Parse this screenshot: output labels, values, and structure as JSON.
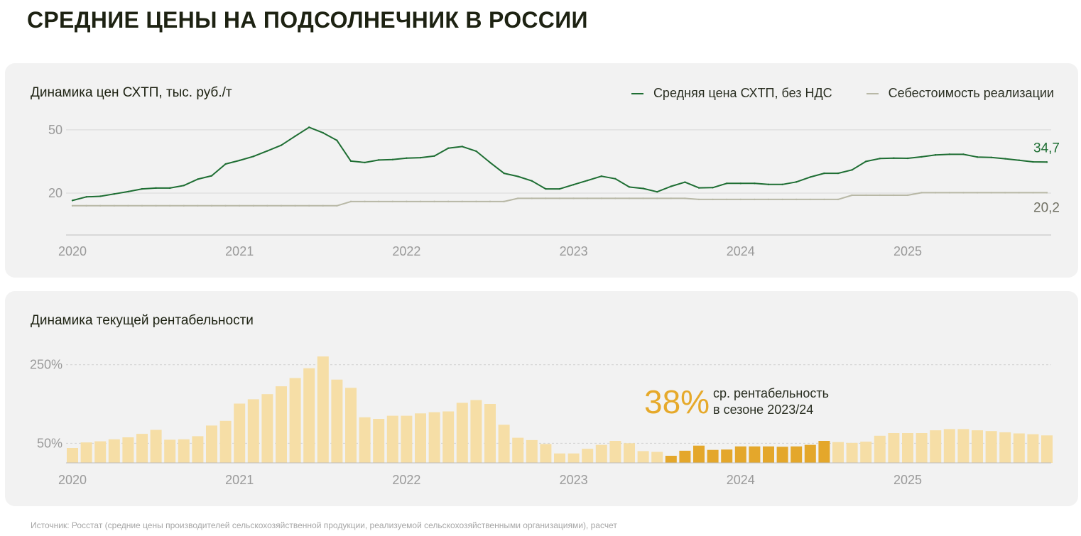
{
  "page": {
    "title": "СРЕДНИЕ ЦЕНЫ НА ПОДСОЛНЕЧНИК В РОССИИ",
    "source": "Источник: Росстат (средние цены производителей сельскохозяйственной продукции, реализуемой сельскохозяйственными организациями), расчет"
  },
  "colors": {
    "price": "#1e6e33",
    "cost": "#b8b8a6",
    "bar_light": "#f6dea6",
    "bar_dark": "#e4a72b",
    "callout": "#e6a92a"
  },
  "chart_data": [
    {
      "type": "line",
      "title": "Динамика цен СХТП",
      "title_unit": ", тыс. руб./т",
      "x_start": "2020-01",
      "x_ticks": [
        "2020",
        "2021",
        "2022",
        "2023",
        "2024",
        "2025"
      ],
      "y_ticks": [
        50,
        20
      ],
      "ylim": [
        0,
        55
      ],
      "grid": "horizontal",
      "legend_position": "top-right",
      "series": [
        {
          "name": "Средняя цена СХТП, без НДС",
          "end_label": "34,7",
          "values": [
            16.5,
            18.2,
            18.5,
            19.6,
            20.7,
            22.0,
            22.4,
            22.4,
            23.6,
            26.6,
            28.2,
            33.8,
            35.5,
            37.4,
            40.0,
            42.7,
            47.0,
            51.2,
            48.6,
            45.0,
            35.2,
            34.5,
            35.7,
            35.9,
            36.6,
            36.8,
            37.6,
            41.3,
            42.1,
            39.9,
            34.5,
            29.4,
            27.9,
            25.8,
            22.0,
            22.0,
            24.0,
            26.0,
            28.0,
            26.8,
            22.9,
            22.2,
            20.6,
            23.2,
            25.2,
            22.5,
            22.6,
            24.6,
            24.6,
            24.6,
            24.1,
            24.1,
            25.3,
            27.6,
            29.4,
            29.4,
            31.0,
            35.0,
            36.4,
            36.6,
            36.5,
            37.2,
            38.1,
            38.4,
            38.4,
            37.1,
            36.9,
            36.3,
            35.6,
            34.8,
            34.7
          ]
        },
        {
          "name": "Себестоимость реализации",
          "end_label": "20,2",
          "values": [
            14.0,
            14.0,
            14.0,
            14.0,
            14.0,
            14.0,
            14.0,
            14.0,
            14.0,
            14.0,
            14.0,
            14.0,
            14.0,
            14.0,
            14.0,
            14.0,
            14.0,
            14.0,
            14.0,
            14.0,
            16.0,
            16.0,
            16.0,
            16.0,
            16.0,
            16.0,
            16.0,
            16.0,
            16.0,
            16.0,
            16.0,
            16.0,
            17.5,
            17.5,
            17.5,
            17.5,
            17.5,
            17.5,
            17.5,
            17.5,
            17.5,
            17.5,
            17.5,
            17.5,
            17.5,
            17.0,
            17.0,
            17.0,
            17.0,
            17.0,
            17.0,
            17.0,
            17.0,
            17.0,
            17.0,
            17.0,
            19.0,
            19.0,
            19.0,
            19.0,
            19.0,
            20.2,
            20.2,
            20.2,
            20.2,
            20.2,
            20.2,
            20.2,
            20.2,
            20.2,
            20.2
          ]
        }
      ]
    },
    {
      "type": "bar",
      "title": "Динамика текущей рентабельности",
      "x_start": "2020-01",
      "x_ticks": [
        "2020",
        "2021",
        "2022",
        "2023",
        "2024",
        "2025"
      ],
      "y_ticks": [
        "250%",
        "50%"
      ],
      "y_tick_values": [
        250,
        50
      ],
      "ylim": [
        0,
        275
      ],
      "grid": "horizontal",
      "highlight_range": [
        "2023-08",
        "2024-07"
      ],
      "values": [
        38,
        52,
        55,
        60,
        65,
        74,
        84,
        59,
        60,
        68,
        95,
        107,
        151,
        162,
        175,
        195,
        216,
        241,
        271,
        212,
        191,
        116,
        112,
        120,
        120,
        126,
        129,
        131,
        153,
        160,
        150,
        97,
        64,
        58,
        48,
        24,
        24,
        36,
        46,
        56,
        50,
        30,
        28,
        18,
        31,
        44,
        33,
        34,
        42,
        42,
        42,
        41,
        42,
        46,
        56,
        53,
        51,
        54,
        69,
        76,
        76,
        76,
        83,
        86,
        86,
        83,
        81,
        78,
        75,
        73,
        70
      ],
      "callout": {
        "value": "38%",
        "line1": "ср. рентабельность",
        "line2": "в сезоне 2023/24"
      }
    }
  ]
}
